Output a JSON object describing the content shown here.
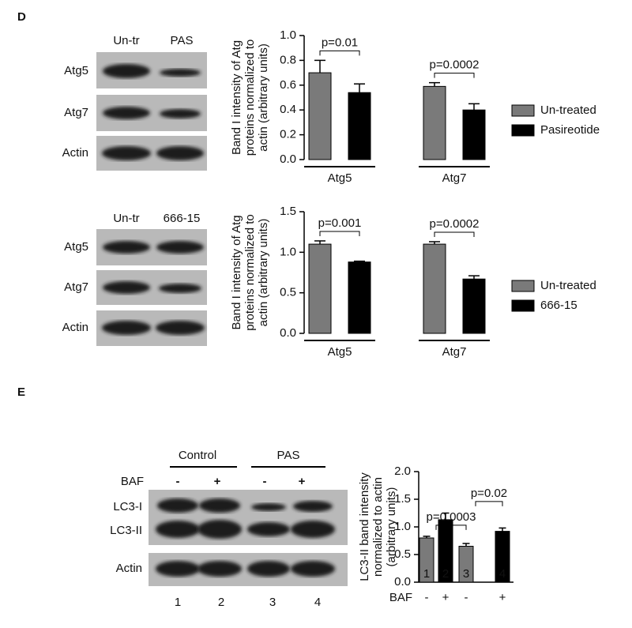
{
  "panels": [
    "D",
    "E"
  ],
  "blots": [
    {
      "lanes": [
        "Un-tr",
        "PAS"
      ],
      "rows": [
        "Atg5",
        "Atg7",
        "Actin"
      ]
    },
    {
      "lanes": [
        "Un-tr",
        "666-15"
      ],
      "rows": [
        "Atg5",
        "Atg7",
        "Actin"
      ]
    },
    {
      "groups": [
        "Control",
        "PAS"
      ],
      "treatment": "BAF",
      "signs": [
        "-",
        "+",
        "-",
        "+"
      ],
      "rows": [
        "LC3-I",
        "LC3-II",
        "Actin"
      ],
      "lane_numbers": [
        "1",
        "2",
        "3",
        "4"
      ]
    }
  ],
  "chart_data": [
    {
      "type": "bar",
      "ylabel": [
        "Band I intensity of Atg",
        "proteins normalized to",
        "actin (arbitrary units)"
      ],
      "categories": [
        "Atg5",
        "Atg7"
      ],
      "series": [
        {
          "name": "Un-treated",
          "color": "#7a7a7a",
          "values": [
            0.7,
            0.59
          ],
          "errors": [
            0.1,
            0.03
          ]
        },
        {
          "name": "Pasireotide",
          "color": "#000000",
          "values": [
            0.54,
            0.4
          ],
          "errors": [
            0.07,
            0.05
          ]
        }
      ],
      "annotations": [
        "p=0.01",
        "p=0.0002"
      ],
      "ylim": [
        0,
        1
      ],
      "yticks": [
        {
          "value": 0,
          "label": "0.0"
        },
        0.2,
        0.4,
        0.6,
        0.8,
        {
          "value": 1,
          "label": "1.0"
        }
      ],
      "legend": "right"
    },
    {
      "type": "bar",
      "ylabel": [
        "Band I intensity of Atg",
        "proteins normalized to",
        "actin (arbitrary units)"
      ],
      "categories": [
        "Atg5",
        "Atg7"
      ],
      "series": [
        {
          "name": "Un-treated",
          "color": "#7a7a7a",
          "values": [
            1.1,
            1.1
          ],
          "errors": [
            0.04,
            0.03
          ]
        },
        {
          "name": "666-15",
          "color": "#000000",
          "values": [
            0.88,
            0.67
          ],
          "errors": [
            0.01,
            0.04
          ]
        }
      ],
      "annotations": [
        "p=0.001",
        "p=0.0002"
      ],
      "ylim": [
        0,
        1.5
      ],
      "yticks": [
        {
          "value": 0,
          "label": "0.0"
        },
        0.5,
        {
          "value": 1,
          "label": "1.0"
        },
        1.5
      ],
      "legend": "right"
    },
    {
      "type": "bar",
      "ylabel": [
        "LC3-II band intensity",
        "normalized to actin",
        "(arbitrary units)"
      ],
      "categories": [
        "1",
        "2",
        "3",
        "4"
      ],
      "values": [
        0.8,
        1.13,
        0.65,
        0.92
      ],
      "errors": [
        0.03,
        0.12,
        0.05,
        0.06
      ],
      "colors": [
        "#7a7a7a",
        "#000000",
        "#7a7a7a",
        "#000000"
      ],
      "sublabel_title": "BAF",
      "sublabels": [
        "-",
        "+",
        "-",
        "+"
      ],
      "annotations": [
        "p=0.0003",
        "p=0.02"
      ],
      "ylim": [
        0,
        2
      ],
      "yticks": [
        {
          "value": 0,
          "label": "0.0"
        },
        0.5,
        {
          "value": 1,
          "label": "1.0"
        },
        1.5,
        {
          "value": 2,
          "label": "2.0"
        }
      ],
      "x_axis": true
    }
  ]
}
